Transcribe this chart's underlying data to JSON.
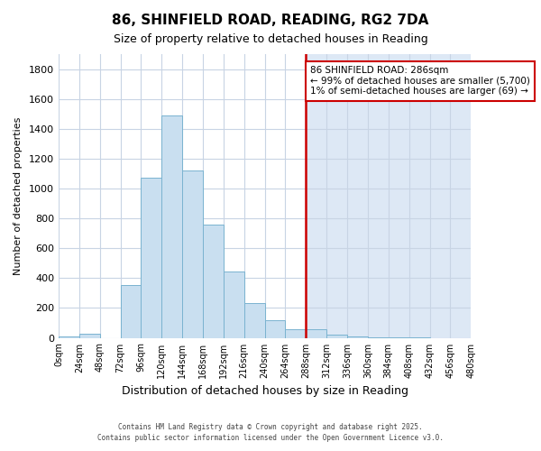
{
  "title": "86, SHINFIELD ROAD, READING, RG2 7DA",
  "subtitle": "Size of property relative to detached houses in Reading",
  "xlabel": "Distribution of detached houses by size in Reading",
  "ylabel": "Number of detached properties",
  "bar_color": "#c9dff0",
  "bar_edge_color": "#7ab3d0",
  "bg_color_left": "#ffffff",
  "bg_color_right": "#dde8f5",
  "grid_color": "#c8d4e4",
  "vline_x": 288,
  "vline_color": "#cc0000",
  "annotation_title": "86 SHINFIELD ROAD: 286sqm",
  "annotation_line1": "← 99% of detached houses are smaller (5,700)",
  "annotation_line2": "1% of semi-detached houses are larger (69) →",
  "bin_edges": [
    0,
    24,
    48,
    72,
    96,
    120,
    144,
    168,
    192,
    216,
    240,
    264,
    288,
    312,
    336,
    360,
    384,
    408,
    432,
    456,
    480
  ],
  "bar_heights": [
    10,
    30,
    0,
    355,
    1075,
    1490,
    1120,
    760,
    445,
    230,
    120,
    60,
    55,
    22,
    12,
    5,
    4,
    2,
    0,
    0
  ],
  "ylim": [
    0,
    1900
  ],
  "yticks": [
    0,
    200,
    400,
    600,
    800,
    1000,
    1200,
    1400,
    1600,
    1800
  ],
  "footer1": "Contains HM Land Registry data © Crown copyright and database right 2025.",
  "footer2": "Contains public sector information licensed under the Open Government Licence v3.0.",
  "bin_size": 24
}
